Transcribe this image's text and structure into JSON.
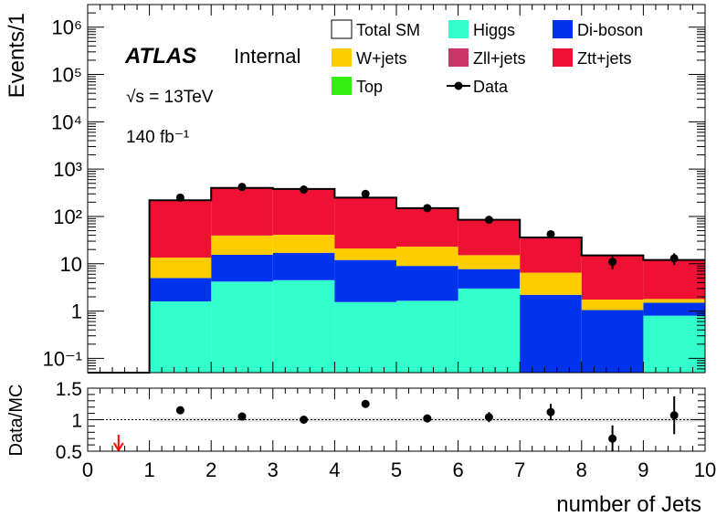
{
  "chart_data": [
    {
      "type": "bar",
      "stacked": true,
      "yscale": "log",
      "ylabel": "Events/1",
      "ylim": [
        0.05,
        3000000
      ],
      "xlim": [
        0,
        10
      ],
      "bin_edges": [
        0,
        1,
        2,
        3,
        4,
        5,
        6,
        7,
        8,
        9,
        10
      ],
      "y_tick_labels": [
        "10⁻¹",
        "1",
        "10",
        "10²",
        "10³",
        "10⁴",
        "10⁵",
        "10⁶"
      ],
      "y_tick_values": [
        0.1,
        1,
        10,
        100,
        1000,
        10000,
        100000,
        1000000
      ],
      "annotations": {
        "atlas": "ATLAS",
        "status": "Internal",
        "energy": "√s = 13TeV",
        "lumi": "140 fb⁻¹"
      },
      "legend_placement": "top-right",
      "series": [
        {
          "name": "Higgs",
          "color": "#33ffcc",
          "values": [
            0,
            1.6,
            4.2,
            4.5,
            1.55,
            1.65,
            3.0,
            0,
            0,
            0.8
          ]
        },
        {
          "name": "Di-boson",
          "color": "#0033ee",
          "values": [
            0,
            3.4,
            11.3,
            12.5,
            10.45,
            7.35,
            4.7,
            2.2,
            1.05,
            0.7
          ]
        },
        {
          "name": "W+jets",
          "color": "#ffcc00",
          "values": [
            0,
            8.5,
            24,
            24,
            9,
            14,
            7.5,
            4.3,
            0.7,
            0.3
          ]
        },
        {
          "name": "Ztt+jets",
          "color": "#ee1133",
          "values": [
            0,
            206,
            361,
            339,
            229,
            127,
            70,
            29,
            13.2,
            10.2
          ]
        },
        {
          "name": "Zll+jets",
          "color": "#cc3366",
          "values": [
            0,
            0,
            0,
            0,
            0,
            0,
            0,
            0,
            0,
            0
          ]
        },
        {
          "name": "Top",
          "color": "#33ee11",
          "values": [
            0,
            0,
            0,
            0,
            0,
            0,
            0,
            0,
            0,
            0
          ]
        }
      ],
      "total_sm": {
        "name": "Total SM",
        "values": [
          0,
          220,
          400,
          380,
          250,
          150,
          85,
          36,
          15,
          12
        ]
      },
      "data": {
        "name": "Data",
        "x": [
          1.5,
          2.5,
          3.5,
          4.5,
          5.5,
          6.5,
          7.5,
          8.5,
          9.5
        ],
        "y": [
          250,
          420,
          370,
          300,
          150,
          85,
          42,
          11,
          13
        ],
        "yerr": [
          16,
          20,
          19,
          17,
          12,
          9,
          6.5,
          3.3,
          3.6
        ]
      }
    },
    {
      "type": "scatter",
      "ylabel": "Data/MC",
      "xlabel": "number of Jets",
      "ylim": [
        0.5,
        1.5
      ],
      "xlim": [
        0,
        10
      ],
      "y_tick_labels": [
        "0.5",
        "1",
        "1.5"
      ],
      "y_tick_values": [
        0.5,
        1,
        1.5
      ],
      "x_tick_labels": [
        "0",
        "1",
        "2",
        "3",
        "4",
        "5",
        "6",
        "7",
        "8",
        "9",
        "10"
      ],
      "x_tick_values": [
        0,
        1,
        2,
        3,
        4,
        5,
        6,
        7,
        8,
        9,
        10
      ],
      "x": [
        1.5,
        2.5,
        3.5,
        4.5,
        5.5,
        6.5,
        7.5,
        8.5,
        9.5
      ],
      "ratio": [
        1.15,
        1.05,
        1.0,
        1.25,
        1.02,
        1.04,
        1.12,
        0.7,
        1.07
      ],
      "ratio_err": [
        0.04,
        0.03,
        0.03,
        0.05,
        0.04,
        0.08,
        0.13,
        0.21,
        0.3
      ],
      "band_unc": [
        0.03,
        0.03,
        0.03,
        0.03,
        0.03,
        0.03,
        0.03,
        0.03,
        0.03
      ],
      "out_of_range_markers": [
        {
          "x": 0.5,
          "direction": "down",
          "color": "#ff0000"
        }
      ]
    }
  ]
}
